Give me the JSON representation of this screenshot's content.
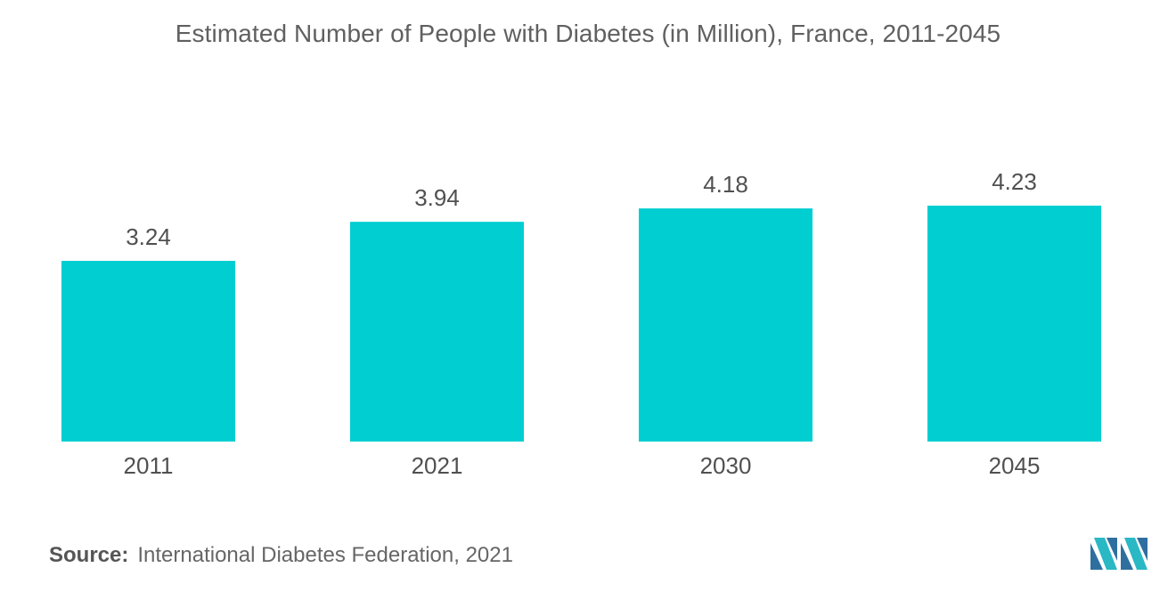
{
  "colors": {
    "bar": "#00ced1",
    "text": "#555555",
    "logo_dark": "#2f6f9f",
    "logo_light": "#29b8c4"
  },
  "source": {
    "label": "Source:",
    "text": "International Diabetes Federation, 2021"
  },
  "logo_icon": "mordor-intelligence-logo-icon",
  "chart_data": {
    "type": "bar",
    "title": "Estimated Number of People with Diabetes (in Million), France, 2011-2045",
    "xlabel": "",
    "ylabel": "",
    "categories": [
      "2011",
      "2021",
      "2030",
      "2045"
    ],
    "values": [
      3.24,
      3.94,
      4.18,
      4.23
    ],
    "data_labels": [
      "3.24",
      "3.94",
      "4.18",
      "4.23"
    ],
    "ylim": [
      0,
      4.23
    ],
    "grid": false,
    "legend": "none"
  }
}
